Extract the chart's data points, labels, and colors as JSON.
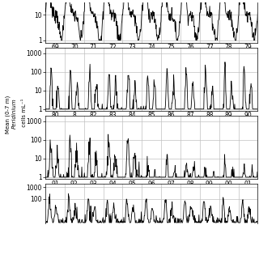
{
  "ylabel": "Mean (0-7 m) Peridinium cells mL⁻¹",
  "panel1_years": [
    "69",
    "70",
    "71",
    "72",
    "73",
    "74",
    "75",
    "76",
    "77",
    "78",
    "79"
  ],
  "panel2_years": [
    "80",
    "8",
    "82",
    "83",
    "84",
    "85",
    "86",
    "87",
    "88",
    "89",
    "90"
  ],
  "panel3_years": [
    "91",
    "92",
    "93",
    "94",
    "95",
    "96",
    "97",
    "98",
    "99",
    "00",
    "01"
  ],
  "line_color": "#000000",
  "grid_color": "#c0c0c0",
  "bg_color": "#ffffff",
  "lw": 0.6
}
